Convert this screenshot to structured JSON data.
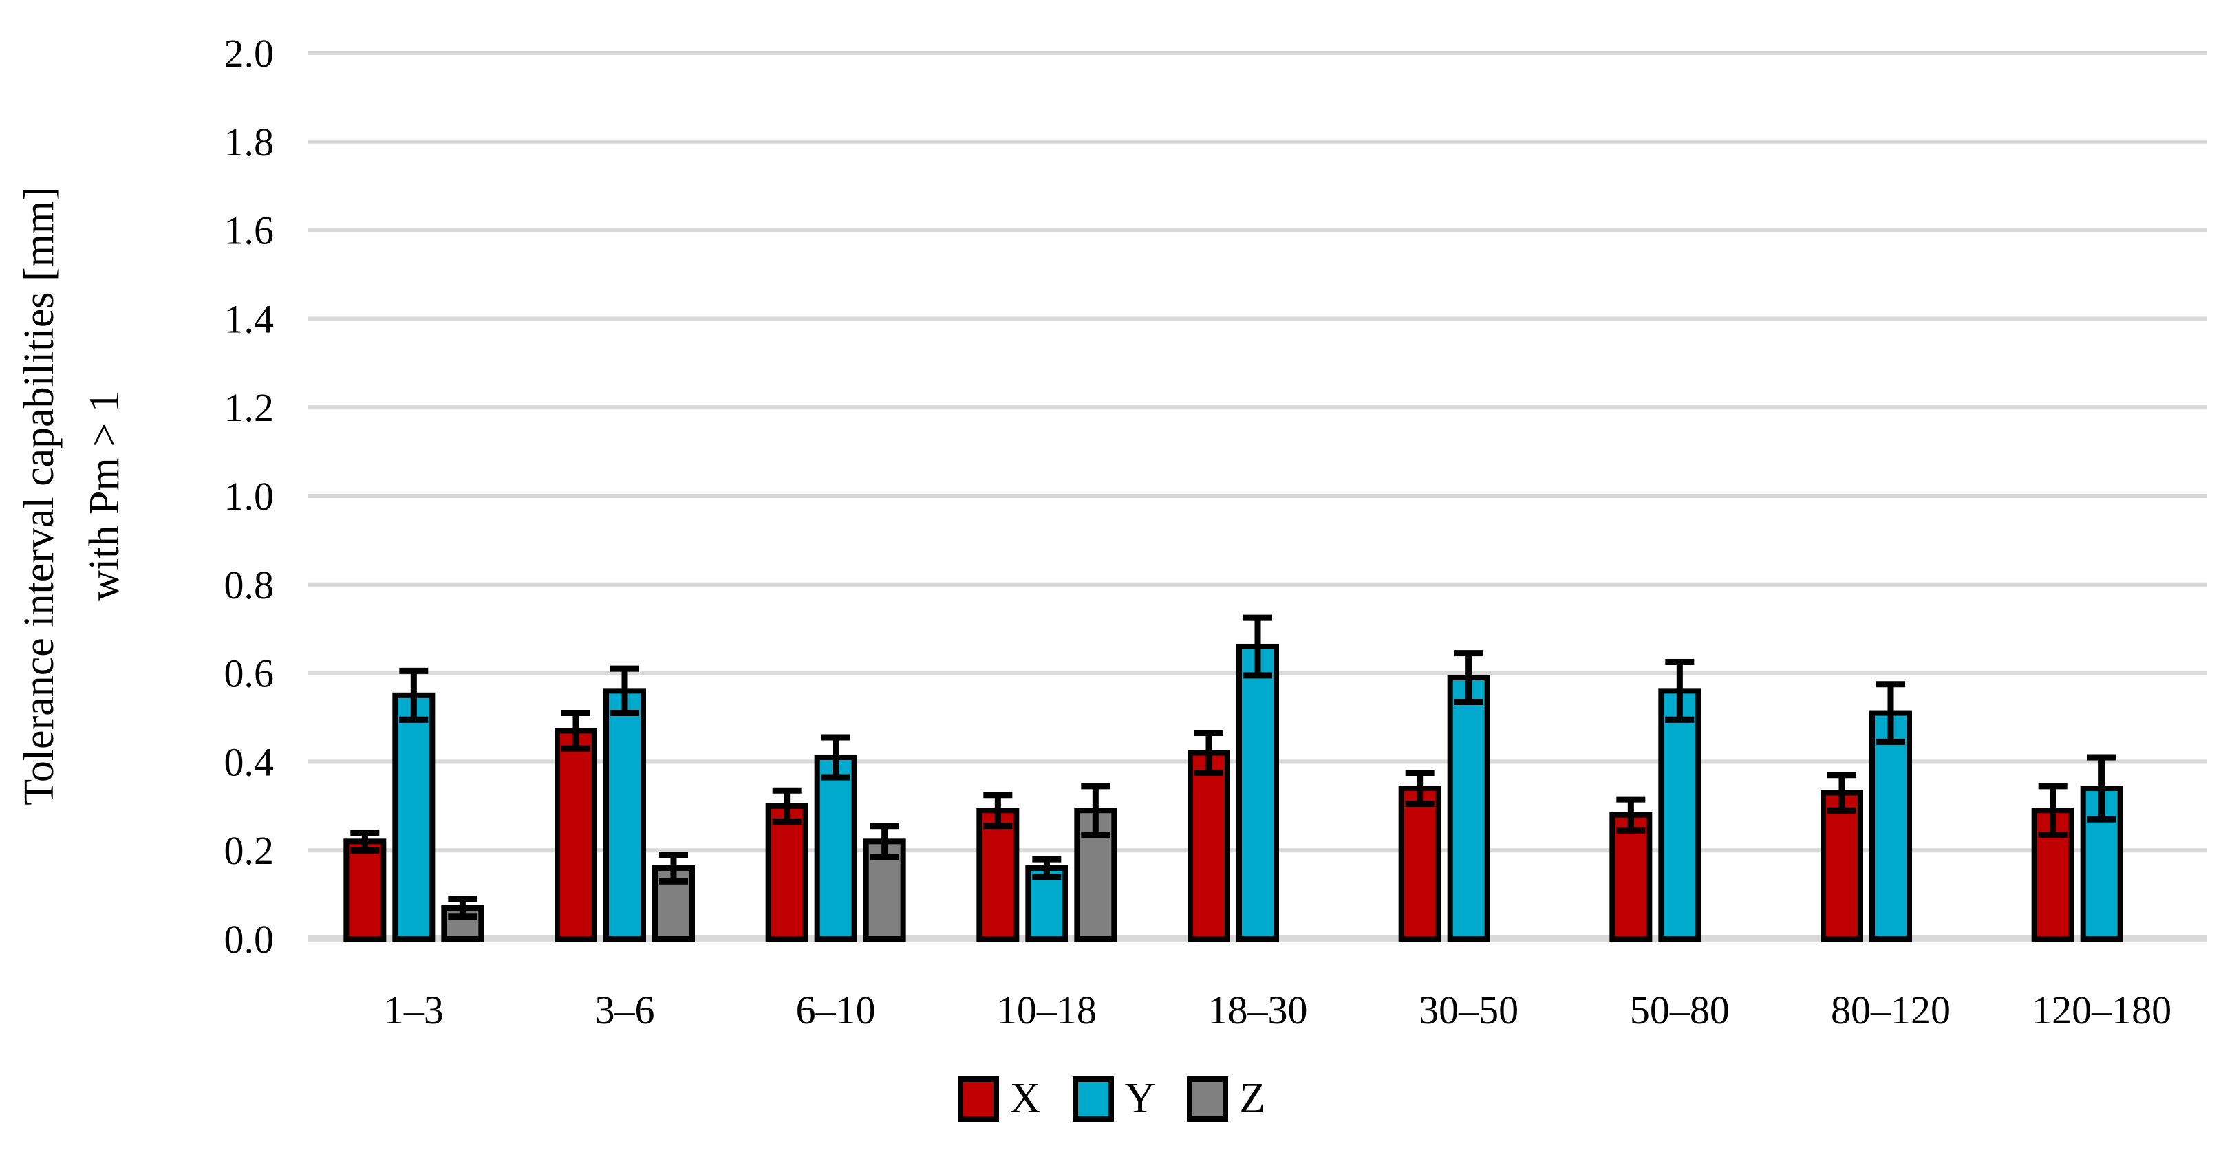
{
  "page": {
    "background": "#FFFFFF"
  },
  "chart_data": {
    "type": "bar",
    "title": "",
    "ylabel_line1": "Tolerance interval capabilities [mm]",
    "ylabel_line2": "with Pm > 1",
    "xlabel": "",
    "categories": [
      "1–3",
      "3–6",
      "6–10",
      "10–18",
      "18–30",
      "30–50",
      "50–80",
      "80–120",
      "120–180"
    ],
    "ylim": [
      0,
      2.0
    ],
    "ytick_step": 0.2,
    "ytick_labels": [
      "0.0",
      "0.2",
      "0.4",
      "0.6",
      "0.8",
      "1.0",
      "1.2",
      "1.4",
      "1.6",
      "1.8",
      "2.0"
    ],
    "grid": true,
    "legend_position": "bottom",
    "error_bars": true,
    "series": [
      {
        "name": "X",
        "color": "#C00000",
        "values": [
          0.22,
          0.47,
          0.3,
          0.29,
          0.42,
          0.34,
          0.28,
          0.33,
          0.29
        ],
        "errors": [
          0.02,
          0.04,
          0.035,
          0.035,
          0.045,
          0.035,
          0.035,
          0.04,
          0.055
        ]
      },
      {
        "name": "Y",
        "color": "#00AACD",
        "values": [
          0.55,
          0.56,
          0.41,
          0.16,
          0.66,
          0.59,
          0.56,
          0.51,
          0.34
        ],
        "errors": [
          0.055,
          0.05,
          0.045,
          0.02,
          0.065,
          0.055,
          0.065,
          0.065,
          0.07
        ]
      },
      {
        "name": "Z",
        "color": "#808080",
        "values": [
          0.07,
          0.16,
          0.22,
          0.29,
          null,
          null,
          null,
          null,
          null
        ],
        "errors": [
          0.02,
          0.03,
          0.035,
          0.055,
          null,
          null,
          null,
          null,
          null
        ]
      }
    ],
    "colors": {
      "grid": "#D9D9D9",
      "baseline": "#D9D9D9",
      "bar_border": "#000000",
      "error_bar": "#000000",
      "text": "#000000"
    }
  }
}
